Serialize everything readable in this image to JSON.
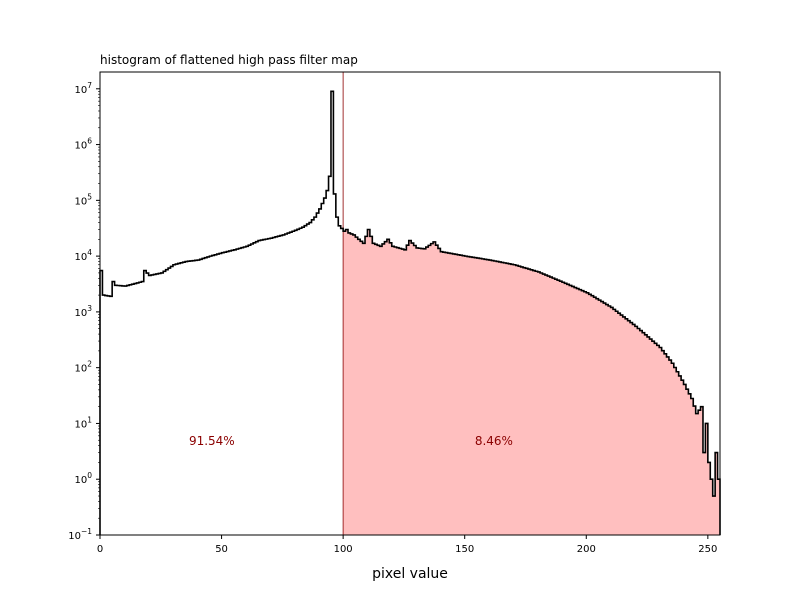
{
  "chart_data": {
    "type": "histogram",
    "title": "histogram of flattened high pass filter map",
    "xlabel": "pixel value",
    "ylabel": "",
    "xlim": [
      0,
      255
    ],
    "ylim": [
      0.1,
      20000000
    ],
    "yscale": "log",
    "grid": false,
    "x_ticks": [
      0,
      50,
      100,
      150,
      200,
      250
    ],
    "y_ticks": [
      {
        "value": 0.1,
        "base": "10",
        "exp": "−1"
      },
      {
        "value": 1,
        "base": "10",
        "exp": "0"
      },
      {
        "value": 10,
        "base": "10",
        "exp": "1"
      },
      {
        "value": 100,
        "base": "10",
        "exp": "2"
      },
      {
        "value": 1000,
        "base": "10",
        "exp": "3"
      },
      {
        "value": 10000,
        "base": "10",
        "exp": "4"
      },
      {
        "value": 100000,
        "base": "10",
        "exp": "5"
      },
      {
        "value": 1000000,
        "base": "10",
        "exp": "6"
      },
      {
        "value": 10000000,
        "base": "10",
        "exp": "7"
      }
    ],
    "threshold": 100,
    "threshold_color": "#8b0000",
    "shade_color": "#ffbfbf",
    "line_color": "#000000",
    "annotations": [
      {
        "text": "91.54%",
        "x": 46,
        "y": 5
      },
      {
        "text": "8.46%",
        "x": 162,
        "y": 5
      }
    ],
    "annotation_color": "#8b0000",
    "anchors": [
      [
        0,
        5500
      ],
      [
        1,
        2000
      ],
      [
        4,
        1900
      ],
      [
        5,
        3500
      ],
      [
        6,
        3000
      ],
      [
        10,
        2900
      ],
      [
        15,
        3300
      ],
      [
        17,
        3500
      ],
      [
        18,
        5500
      ],
      [
        20,
        4500
      ],
      [
        25,
        5000
      ],
      [
        30,
        7000
      ],
      [
        35,
        8000
      ],
      [
        40,
        8500
      ],
      [
        45,
        10000
      ],
      [
        50,
        11500
      ],
      [
        55,
        13000
      ],
      [
        60,
        15000
      ],
      [
        65,
        19000
      ],
      [
        70,
        21000
      ],
      [
        75,
        24000
      ],
      [
        80,
        29000
      ],
      [
        83,
        33000
      ],
      [
        86,
        40000
      ],
      [
        88,
        50000
      ],
      [
        90,
        70000
      ],
      [
        92,
        110000
      ],
      [
        93,
        150000
      ],
      [
        94,
        270000
      ],
      [
        95,
        9000000
      ],
      [
        96,
        130000
      ],
      [
        97,
        50000
      ],
      [
        98,
        35000
      ],
      [
        100,
        28000
      ],
      [
        101,
        30000
      ],
      [
        102,
        26000
      ],
      [
        104,
        24000
      ],
      [
        106,
        20000
      ],
      [
        108,
        17000
      ],
      [
        110,
        30000
      ],
      [
        112,
        17000
      ],
      [
        115,
        15000
      ],
      [
        118,
        20000
      ],
      [
        120,
        15000
      ],
      [
        125,
        13000
      ],
      [
        127,
        19000
      ],
      [
        130,
        14000
      ],
      [
        133,
        13500
      ],
      [
        137,
        18000
      ],
      [
        140,
        12000
      ],
      [
        150,
        10000
      ],
      [
        160,
        8500
      ],
      [
        170,
        7000
      ],
      [
        180,
        5200
      ],
      [
        190,
        3400
      ],
      [
        200,
        2200
      ],
      [
        210,
        1200
      ],
      [
        220,
        550
      ],
      [
        230,
        230
      ],
      [
        235,
        120
      ],
      [
        240,
        50
      ],
      [
        243,
        28
      ],
      [
        245,
        15
      ],
      [
        247,
        20
      ],
      [
        248,
        3
      ],
      [
        249,
        10
      ],
      [
        250,
        2
      ],
      [
        251,
        1
      ],
      [
        252,
        0.5
      ],
      [
        253,
        3
      ],
      [
        254,
        1
      ]
    ]
  }
}
